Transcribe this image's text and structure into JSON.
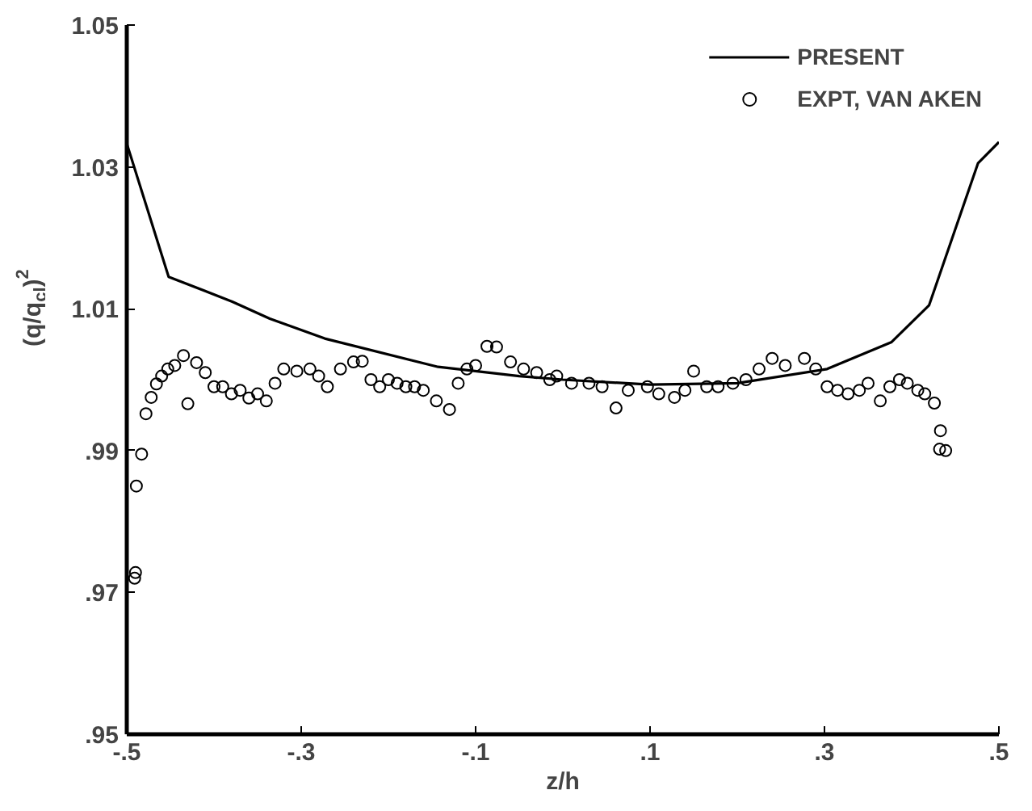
{
  "chart_data": {
    "type": "scatter",
    "xlabel": "z/h",
    "ylabel": "(q/q$_{cl}$)$^{2}$",
    "xlim": [
      -0.5,
      0.5
    ],
    "ylim": [
      0.95,
      1.05
    ],
    "xticks": [
      {
        "value": -0.5,
        "label": "-.5"
      },
      {
        "value": -0.3,
        "label": "-.3"
      },
      {
        "value": -0.1,
        "label": "-.1"
      },
      {
        "value": 0.1,
        "label": ".1"
      },
      {
        "value": 0.3,
        "label": ".3"
      },
      {
        "value": 0.5,
        "label": ".5"
      }
    ],
    "yticks": [
      {
        "value": 0.95,
        "label": ".95"
      },
      {
        "value": 0.97,
        "label": ".97"
      },
      {
        "value": 0.99,
        "label": ".99"
      },
      1.01,
      1.03,
      1.05
    ],
    "grid": false,
    "legend": "top right",
    "series": [
      {
        "name": "PRESENT",
        "type": "line",
        "color": "#000000",
        "line_style": "solid",
        "marker": "none",
        "x": [
          -0.5,
          -0.452,
          -0.379,
          -0.336,
          -0.273,
          -0.143,
          -0.05,
          0.0,
          0.1,
          0.2,
          0.303,
          0.377,
          0.42,
          0.476,
          0.5
        ],
        "values": [
          1.0333,
          1.0145,
          1.011,
          1.0086,
          1.0058,
          1.0018,
          1.0005,
          1.0,
          0.9993,
          0.9995,
          1.0015,
          1.0053,
          1.0105,
          1.0305,
          1.0335
        ]
      },
      {
        "name": "EXPT, VAN AKEN",
        "type": "scatter",
        "color": "#000000",
        "marker": "circle",
        "x": [
          -0.491,
          -0.49,
          -0.489,
          -0.483,
          -0.478,
          -0.472,
          -0.466,
          -0.46,
          -0.453,
          -0.445,
          -0.435,
          -0.43,
          -0.42,
          -0.41,
          -0.4,
          -0.39,
          -0.38,
          -0.37,
          -0.36,
          -0.35,
          -0.34,
          -0.33,
          -0.32,
          -0.305,
          -0.29,
          -0.28,
          -0.27,
          -0.255,
          -0.24,
          -0.23,
          -0.22,
          -0.21,
          -0.2,
          -0.19,
          -0.18,
          -0.17,
          -0.16,
          -0.145,
          -0.13,
          -0.12,
          -0.11,
          -0.1,
          -0.087,
          -0.076,
          -0.06,
          -0.045,
          -0.03,
          -0.015,
          -0.007,
          0.01,
          0.03,
          0.045,
          0.061,
          0.075,
          0.097,
          0.11,
          0.128,
          0.14,
          0.15,
          0.165,
          0.178,
          0.195,
          0.21,
          0.225,
          0.24,
          0.255,
          0.277,
          0.29,
          0.303,
          0.315,
          0.327,
          0.34,
          0.35,
          0.364,
          0.375,
          0.386,
          0.395,
          0.407,
          0.415,
          0.426,
          0.432,
          0.433,
          0.439
        ],
        "values": [
          0.972,
          0.9728,
          0.985,
          0.9895,
          0.9952,
          0.9975,
          0.9994,
          1.0005,
          1.0015,
          1.002,
          1.0034,
          0.9966,
          1.0024,
          1.001,
          0.999,
          0.999,
          0.998,
          0.9985,
          0.9974,
          0.998,
          0.997,
          0.9995,
          1.0015,
          1.0012,
          1.0015,
          1.0005,
          0.999,
          1.0015,
          1.0025,
          1.0026,
          1.0,
          0.999,
          1.0,
          0.9995,
          0.999,
          0.999,
          0.9985,
          0.997,
          0.9958,
          0.9995,
          1.0015,
          1.002,
          1.0047,
          1.0046,
          1.0025,
          1.0015,
          1.001,
          1.0,
          1.0005,
          0.9995,
          0.9995,
          0.999,
          0.996,
          0.9985,
          0.999,
          0.998,
          0.9975,
          0.9985,
          1.0012,
          0.999,
          0.999,
          0.9995,
          1.0,
          1.0015,
          1.003,
          1.002,
          1.003,
          1.0015,
          0.999,
          0.9985,
          0.998,
          0.9985,
          0.9995,
          0.997,
          0.999,
          1.0,
          0.9995,
          0.9985,
          0.998,
          0.9967,
          0.9902,
          0.9928,
          0.99
        ]
      }
    ]
  }
}
